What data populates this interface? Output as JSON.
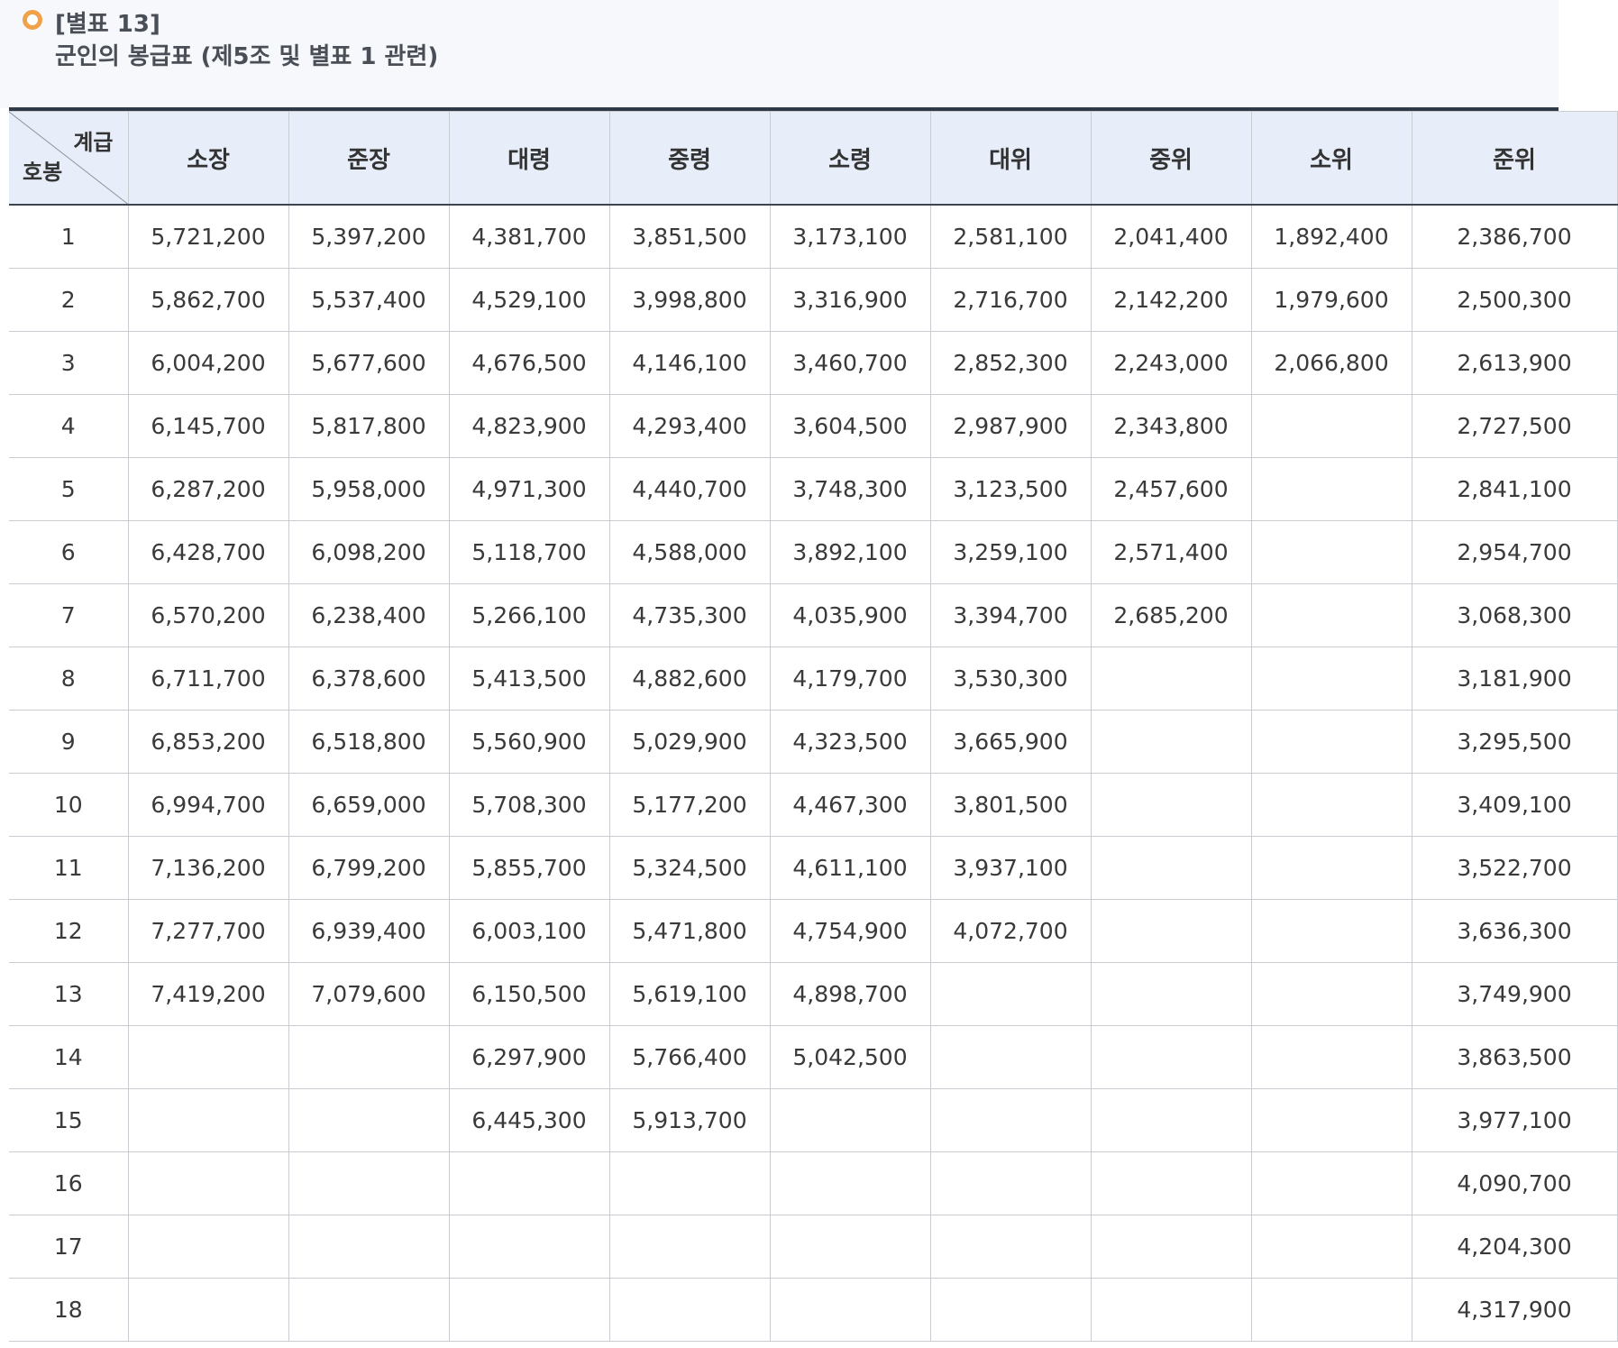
{
  "title": {
    "annex": "[별표 13]",
    "caption": "군인의 봉급표 (제5조 및 별표 1 관련)"
  },
  "table": {
    "corner_top": "계급",
    "corner_bottom": "호봉",
    "ranks": [
      "소장",
      "준장",
      "대령",
      "중령",
      "소령",
      "대위",
      "중위",
      "소위",
      "준위"
    ],
    "rows": [
      {
        "step": "1",
        "values": [
          "5,721,200",
          "5,397,200",
          "4,381,700",
          "3,851,500",
          "3,173,100",
          "2,581,100",
          "2,041,400",
          "1,892,400",
          "2,386,700"
        ]
      },
      {
        "step": "2",
        "values": [
          "5,862,700",
          "5,537,400",
          "4,529,100",
          "3,998,800",
          "3,316,900",
          "2,716,700",
          "2,142,200",
          "1,979,600",
          "2,500,300"
        ]
      },
      {
        "step": "3",
        "values": [
          "6,004,200",
          "5,677,600",
          "4,676,500",
          "4,146,100",
          "3,460,700",
          "2,852,300",
          "2,243,000",
          "2,066,800",
          "2,613,900"
        ]
      },
      {
        "step": "4",
        "values": [
          "6,145,700",
          "5,817,800",
          "4,823,900",
          "4,293,400",
          "3,604,500",
          "2,987,900",
          "2,343,800",
          "",
          "2,727,500"
        ]
      },
      {
        "step": "5",
        "values": [
          "6,287,200",
          "5,958,000",
          "4,971,300",
          "4,440,700",
          "3,748,300",
          "3,123,500",
          "2,457,600",
          "",
          "2,841,100"
        ]
      },
      {
        "step": "6",
        "values": [
          "6,428,700",
          "6,098,200",
          "5,118,700",
          "4,588,000",
          "3,892,100",
          "3,259,100",
          "2,571,400",
          "",
          "2,954,700"
        ]
      },
      {
        "step": "7",
        "values": [
          "6,570,200",
          "6,238,400",
          "5,266,100",
          "4,735,300",
          "4,035,900",
          "3,394,700",
          "2,685,200",
          "",
          "3,068,300"
        ]
      },
      {
        "step": "8",
        "values": [
          "6,711,700",
          "6,378,600",
          "5,413,500",
          "4,882,600",
          "4,179,700",
          "3,530,300",
          "",
          "",
          "3,181,900"
        ]
      },
      {
        "step": "9",
        "values": [
          "6,853,200",
          "6,518,800",
          "5,560,900",
          "5,029,900",
          "4,323,500",
          "3,665,900",
          "",
          "",
          "3,295,500"
        ]
      },
      {
        "step": "10",
        "values": [
          "6,994,700",
          "6,659,000",
          "5,708,300",
          "5,177,200",
          "4,467,300",
          "3,801,500",
          "",
          "",
          "3,409,100"
        ]
      },
      {
        "step": "11",
        "values": [
          "7,136,200",
          "6,799,200",
          "5,855,700",
          "5,324,500",
          "4,611,100",
          "3,937,100",
          "",
          "",
          "3,522,700"
        ]
      },
      {
        "step": "12",
        "values": [
          "7,277,700",
          "6,939,400",
          "6,003,100",
          "5,471,800",
          "4,754,900",
          "4,072,700",
          "",
          "",
          "3,636,300"
        ]
      },
      {
        "step": "13",
        "values": [
          "7,419,200",
          "7,079,600",
          "6,150,500",
          "5,619,100",
          "4,898,700",
          "",
          "",
          "",
          "3,749,900"
        ]
      },
      {
        "step": "14",
        "values": [
          "",
          "",
          "6,297,900",
          "5,766,400",
          "5,042,500",
          "",
          "",
          "",
          "3,863,500"
        ]
      },
      {
        "step": "15",
        "values": [
          "",
          "",
          "6,445,300",
          "5,913,700",
          "",
          "",
          "",
          "",
          "3,977,100"
        ]
      },
      {
        "step": "16",
        "values": [
          "",
          "",
          "",
          "",
          "",
          "",
          "",
          "",
          "4,090,700"
        ]
      },
      {
        "step": "17",
        "values": [
          "",
          "",
          "",
          "",
          "",
          "",
          "",
          "",
          "4,204,300"
        ]
      },
      {
        "step": "18",
        "values": [
          "",
          "",
          "",
          "",
          "",
          "",
          "",
          "",
          "4,317,900"
        ]
      }
    ]
  },
  "colors": {
    "header_bg": "#e7eef9",
    "page_header_bg": "#f6f8fb",
    "top_rule": "#2f3a48",
    "grid_line": "#c9cdd2",
    "bullet": "#f0a24a",
    "title_text": "#4a4f57"
  }
}
